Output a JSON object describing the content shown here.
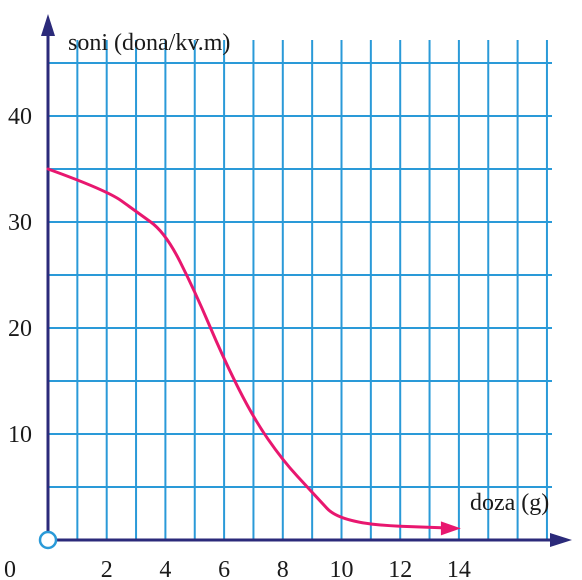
{
  "chart_data": {
    "type": "line",
    "xlabel": "doza (g)",
    "ylabel": "soni (dona/kv.m)",
    "origin_label": "0",
    "x_ticks": [
      2,
      4,
      6,
      8,
      10,
      12,
      14
    ],
    "y_ticks": [
      10,
      20,
      30,
      40
    ],
    "xlim": [
      0,
      17.5
    ],
    "ylim": [
      0,
      48
    ],
    "grid": true,
    "grid_step_x": 1,
    "grid_step_y": 5,
    "series": [
      {
        "x": [
          0,
          2,
          3,
          4,
          5,
          6,
          7,
          8,
          9,
          10,
          14
        ],
        "y": [
          35,
          33,
          31,
          29,
          23.5,
          17,
          11.5,
          7.5,
          4.5,
          1.5,
          1.1
        ]
      }
    ],
    "colors": {
      "grid": "#2a9ad8",
      "axis": "#2b2a7a",
      "line": "#e8176f",
      "origin": "#2a9ad8"
    }
  }
}
